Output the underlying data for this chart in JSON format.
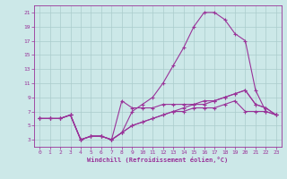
{
  "xlabel": "Windchill (Refroidissement éolien,°C)",
  "background_color": "#cce8e8",
  "line_color": "#993399",
  "grid_color": "#aacccc",
  "xlim": [
    -0.5,
    23.5
  ],
  "ylim": [
    2.0,
    22.0
  ],
  "xticks": [
    0,
    1,
    2,
    3,
    4,
    5,
    6,
    7,
    8,
    9,
    10,
    11,
    12,
    13,
    14,
    15,
    16,
    17,
    18,
    19,
    20,
    21,
    22,
    23
  ],
  "yticks": [
    3,
    5,
    7,
    9,
    11,
    13,
    15,
    17,
    19,
    21
  ],
  "series": {
    "temp": [
      6,
      6,
      6,
      6.5,
      3,
      3.5,
      3.5,
      3,
      4,
      7,
      8,
      9,
      11,
      13.5,
      16,
      19,
      21,
      21,
      20,
      18,
      17,
      10,
      7,
      6.5
    ],
    "windchill1": [
      6,
      6,
      6,
      6.5,
      3,
      3.5,
      3.5,
      3,
      8.5,
      7.5,
      7.5,
      7.5,
      8,
      8,
      8,
      8,
      8.5,
      8.5,
      9,
      9.5,
      10,
      8,
      7.5,
      6.5
    ],
    "windchill2": [
      6,
      6,
      6,
      6.5,
      3,
      3.5,
      3.5,
      3,
      4,
      5,
      5.5,
      6,
      6.5,
      7,
      7.5,
      8,
      8,
      8.5,
      9,
      9.5,
      10,
      8,
      7.5,
      6.5
    ],
    "windchill3": [
      6,
      6,
      6,
      6.5,
      3,
      3.5,
      3.5,
      3,
      4,
      5,
      5.5,
      6,
      6.5,
      7,
      7,
      7.5,
      7.5,
      7.5,
      8,
      8.5,
      7,
      7,
      7,
      6.5
    ]
  },
  "x": [
    0,
    1,
    2,
    3,
    4,
    5,
    6,
    7,
    8,
    9,
    10,
    11,
    12,
    13,
    14,
    15,
    16,
    17,
    18,
    19,
    20,
    21,
    22,
    23
  ]
}
